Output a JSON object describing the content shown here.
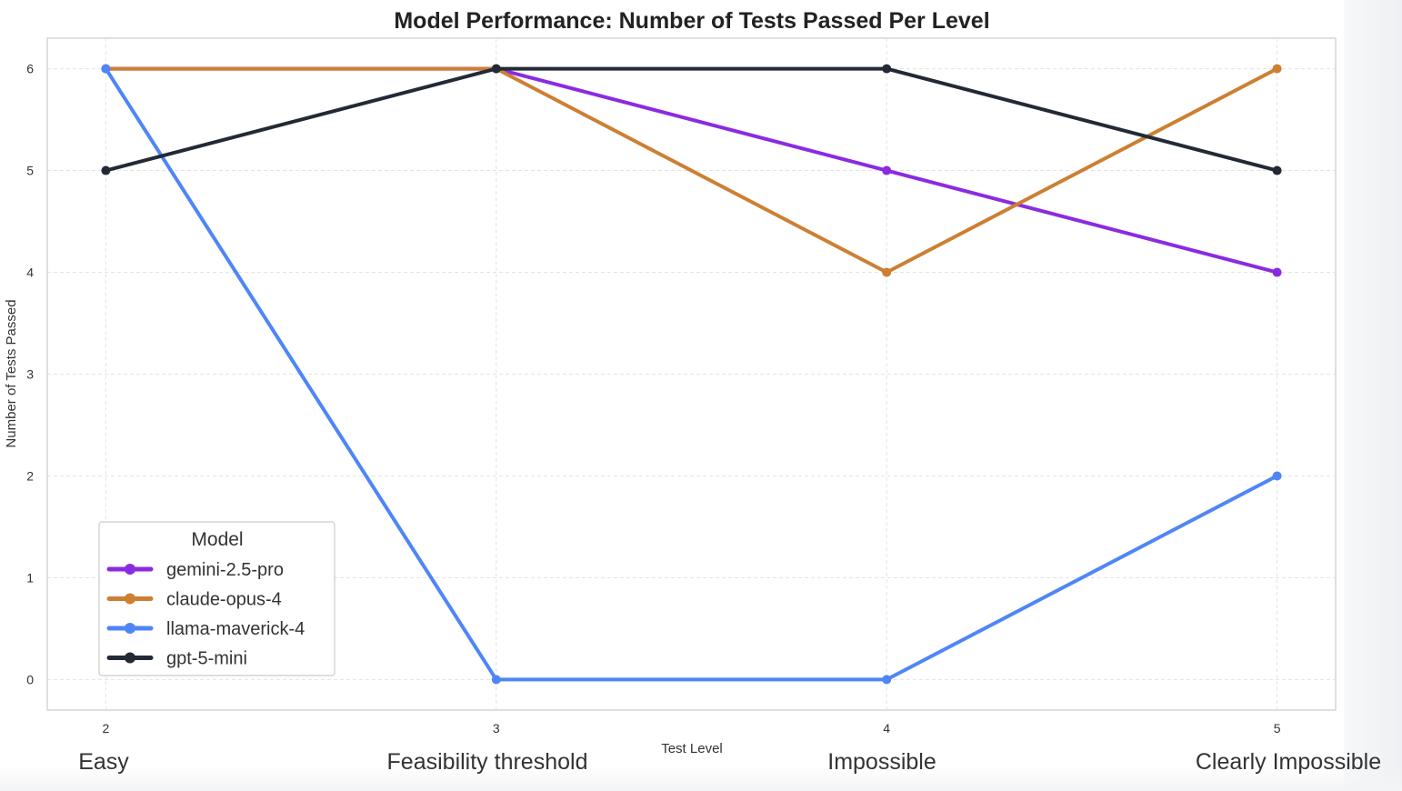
{
  "chart_data": {
    "type": "line",
    "title": "Model Performance: Number of Tests Passed Per Level",
    "xlabel": "Test Level",
    "ylabel": "Number of Tests Passed",
    "x": [
      2,
      3,
      4,
      5
    ],
    "x_tick_labels": [
      "2",
      "3",
      "4",
      "5"
    ],
    "y_ticks": [
      0,
      1,
      2,
      3,
      4,
      5,
      6
    ],
    "xlim": [
      1.85,
      5.15
    ],
    "ylim": [
      -0.3,
      6.3
    ],
    "grid": true,
    "legend_title": "Model",
    "legend_placement": "lower-left",
    "series": [
      {
        "name": "gemini-2.5-pro",
        "color": "#8a2be2",
        "values": [
          6,
          6,
          5,
          4
        ]
      },
      {
        "name": "claude-opus-4",
        "color": "#cd7f32",
        "values": [
          6,
          6,
          4,
          6
        ]
      },
      {
        "name": "llama-maverick-4",
        "color": "#4f86f7",
        "values": [
          6,
          0,
          0,
          2
        ]
      },
      {
        "name": "gpt-5-mini",
        "color": "#232a36",
        "values": [
          5,
          6,
          6,
          5
        ]
      }
    ]
  },
  "level_labels": [
    "Easy",
    "Feasibility threshold",
    "Impossible",
    "Clearly Impossible"
  ]
}
